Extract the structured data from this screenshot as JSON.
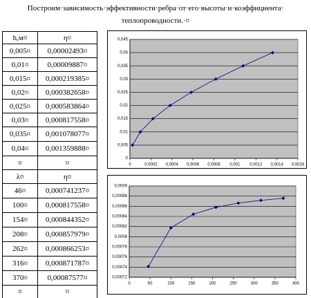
{
  "title": [
    "Построим·зависимость·эффективности·ребра·от·его·высоты·и·коэффициента·",
    "теплопроводности.·¤"
  ],
  "table": {
    "rows": [
      [
        "h,м¤",
        "η¤"
      ],
      [
        "0,005¤",
        "0,00002493¤"
      ],
      [
        "0,01¤",
        "0,00009887¤"
      ],
      [
        "0,015¤",
        "0,000219385¤"
      ],
      [
        "0,02¤",
        "0,000382658¤"
      ],
      [
        "0,025¤",
        "0,000583864¤"
      ],
      [
        "0,03¤",
        "0,000817558¤"
      ],
      [
        "0,035¤",
        "0,001078077¤"
      ],
      [
        "0,04¤",
        "0,001359888¤"
      ],
      [
        "¤",
        "¤"
      ],
      [
        "λ¤",
        "η¤"
      ],
      [
        "46¤",
        "0,000741237¤"
      ],
      [
        "100¤",
        "0,000817558¤"
      ],
      [
        "154¤",
        "0,000844352¤"
      ],
      [
        "208¤",
        "0,000857979¤"
      ],
      [
        "262¤",
        "0,000866253¤"
      ],
      [
        "316¤",
        "0,000871787¤"
      ],
      [
        "370¤",
        "0,00087577¤"
      ],
      [
        "¤",
        "¤"
      ]
    ]
  },
  "chart_data": [
    {
      "type": "line",
      "color": "#000080",
      "plot_color": "#c0c0c0",
      "grid": true,
      "xlim": [
        0,
        0.0016
      ],
      "xticks": [
        0,
        {
          "value": 0.0002,
          "label": "0,0002"
        },
        {
          "value": 0.0004,
          "label": "0,0004"
        },
        {
          "value": 0.0006,
          "label": "0,0006"
        },
        {
          "value": 0.0008,
          "label": "0,0008"
        },
        {
          "value": 0.001,
          "label": "0,001"
        },
        {
          "value": 0.0012,
          "label": "0,0012"
        },
        {
          "value": 0.0014,
          "label": "0,0014"
        },
        {
          "value": 0.0016,
          "label": "0,0016"
        }
      ],
      "ylim": [
        0,
        0.045
      ],
      "yticks": [
        0,
        {
          "value": 0.005,
          "label": "0,005"
        },
        {
          "value": 0.01,
          "label": "0,01"
        },
        {
          "value": 0.015,
          "label": "0,015"
        },
        {
          "value": 0.02,
          "label": "0,02"
        },
        {
          "value": 0.025,
          "label": "0,025"
        },
        {
          "value": 0.03,
          "label": "0,03"
        },
        {
          "value": 0.035,
          "label": "0,035"
        },
        {
          "value": 0.04,
          "label": "0,04"
        },
        {
          "value": 0.045,
          "label": "0,045"
        }
      ],
      "x": [
        2.493e-05,
        9.887e-05,
        0.000219385,
        0.000382658,
        0.000583864,
        0.000817558,
        0.001078077,
        0.001359888
      ],
      "values": [
        0.005,
        0.01,
        0.015,
        0.02,
        0.025,
        0.03,
        0.035,
        0.04
      ]
    },
    {
      "type": "line",
      "color": "#000080",
      "plot_color": "#c0c0c0",
      "grid": true,
      "xlim": [
        0,
        400
      ],
      "xticks": [
        0,
        50,
        100,
        150,
        200,
        250,
        300,
        350,
        400
      ],
      "ylim": [
        0.00072,
        0.0009
      ],
      "yticks": [
        {
          "value": 0.00072,
          "label": "0,00072"
        },
        {
          "value": 0.00074,
          "label": "0,00074"
        },
        {
          "value": 0.00076,
          "label": "0,00076"
        },
        {
          "value": 0.00078,
          "label": "0,00078"
        },
        {
          "value": 0.0008,
          "label": "0,0008"
        },
        {
          "value": 0.00082,
          "label": "0,00082"
        },
        {
          "value": 0.00084,
          "label": "0,00084"
        },
        {
          "value": 0.00086,
          "label": "0,00086"
        },
        {
          "value": 0.00088,
          "label": "0,00088"
        },
        {
          "value": 0.0009,
          "label": "0,0009"
        }
      ],
      "x": [
        46,
        100,
        154,
        208,
        262,
        316,
        370
      ],
      "values": [
        0.000741237,
        0.000817558,
        0.000844352,
        0.000857979,
        0.000866253,
        0.000871787,
        0.00087577
      ]
    }
  ]
}
